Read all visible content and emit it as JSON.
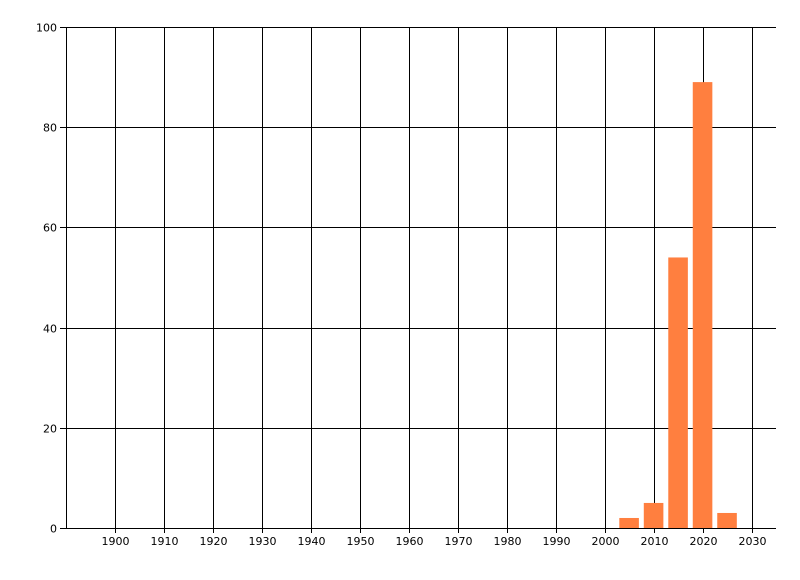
{
  "chart_data": {
    "type": "bar",
    "title": "",
    "xlabel": "",
    "ylabel": "",
    "x": [
      2005,
      2010,
      2015,
      2020,
      2025
    ],
    "values": [
      2,
      5,
      54,
      89,
      3
    ],
    "bar_width_years": 4,
    "xlim": [
      1890,
      2035
    ],
    "ylim": [
      0,
      100
    ],
    "x_ticks": [
      1900,
      1910,
      1920,
      1930,
      1940,
      1950,
      1960,
      1970,
      1980,
      1990,
      2000,
      2010,
      2020,
      2030
    ],
    "y_ticks": [
      0,
      20,
      40,
      60,
      80,
      100
    ],
    "grid": true,
    "legend": "none",
    "bar_color": "#FF7F3F"
  }
}
